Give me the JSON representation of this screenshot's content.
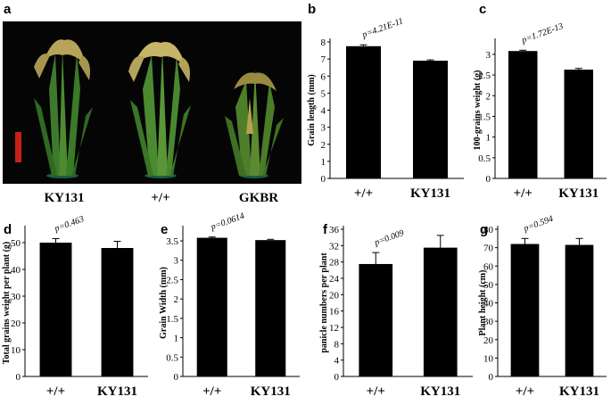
{
  "photo": {
    "label": "a",
    "captions": [
      "KY131",
      "+/+",
      "GKBR"
    ]
  },
  "chart_data": [
    {
      "panel": "b",
      "type": "bar",
      "categories": [
        "+/+",
        "KY131"
      ],
      "values": [
        7.75,
        6.9
      ],
      "errors": [
        0.08,
        0.05
      ],
      "xlabel": "",
      "ylabel": "Grain length (mm)",
      "ylim": [
        0,
        8
      ],
      "yticks": [
        0,
        1,
        2,
        3,
        4,
        5,
        6,
        7,
        8
      ],
      "annotation": "p=4.21E-11",
      "grid": false
    },
    {
      "panel": "c",
      "type": "bar",
      "categories": [
        "+/+",
        "KY131"
      ],
      "values": [
        3.08,
        2.63
      ],
      "errors": [
        0.02,
        0.03
      ],
      "xlabel": "",
      "ylabel": "100-grains weight (g)",
      "ylim": [
        0,
        3.3
      ],
      "yticks": [
        0,
        0.5,
        1,
        1.5,
        2,
        2.5,
        3
      ],
      "annotation": "p=1.72E-13",
      "grid": false
    },
    {
      "panel": "d",
      "type": "bar",
      "categories": [
        "+/+",
        "KY131"
      ],
      "values": [
        50,
        48
      ],
      "errors": [
        1.5,
        2.5
      ],
      "xlabel": "",
      "ylabel": "Total grains weight per plant (g)",
      "ylim": [
        0,
        55
      ],
      "yticks": [
        0,
        10,
        20,
        30,
        40,
        50
      ],
      "annotation": "p=0.463",
      "grid": false
    },
    {
      "panel": "e",
      "type": "bar",
      "categories": [
        "+/+",
        "KY131"
      ],
      "values": [
        3.58,
        3.52
      ],
      "errors": [
        0.02,
        0.02
      ],
      "xlabel": "",
      "ylabel": "Grain Width (mm)",
      "ylim": [
        0,
        3.8
      ],
      "yticks": [
        0,
        0.5,
        1,
        1.5,
        2,
        2.5,
        3,
        3.5
      ],
      "annotation": "p=0.0614",
      "grid": false
    },
    {
      "panel": "f",
      "type": "bar",
      "categories": [
        "+/+",
        "KY131"
      ],
      "values": [
        27.5,
        31.5
      ],
      "errors": [
        2.8,
        3.0
      ],
      "xlabel": "",
      "ylabel": "panicle numbers per plant",
      "ylim": [
        0,
        36
      ],
      "yticks": [
        0,
        4,
        8,
        12,
        16,
        20,
        24,
        28,
        32,
        36
      ],
      "annotation": "p=0.009",
      "grid": false
    },
    {
      "panel": "g",
      "type": "bar",
      "categories": [
        "+/+",
        "KY131"
      ],
      "values": [
        72,
        71.5
      ],
      "errors": [
        3,
        3.5
      ],
      "xlabel": "",
      "ylabel": "Plant height (cm)",
      "ylim": [
        0,
        80
      ],
      "yticks": [
        0,
        10,
        20,
        30,
        40,
        50,
        60,
        70,
        80
      ],
      "annotation": "p=0.594",
      "grid": false
    }
  ]
}
